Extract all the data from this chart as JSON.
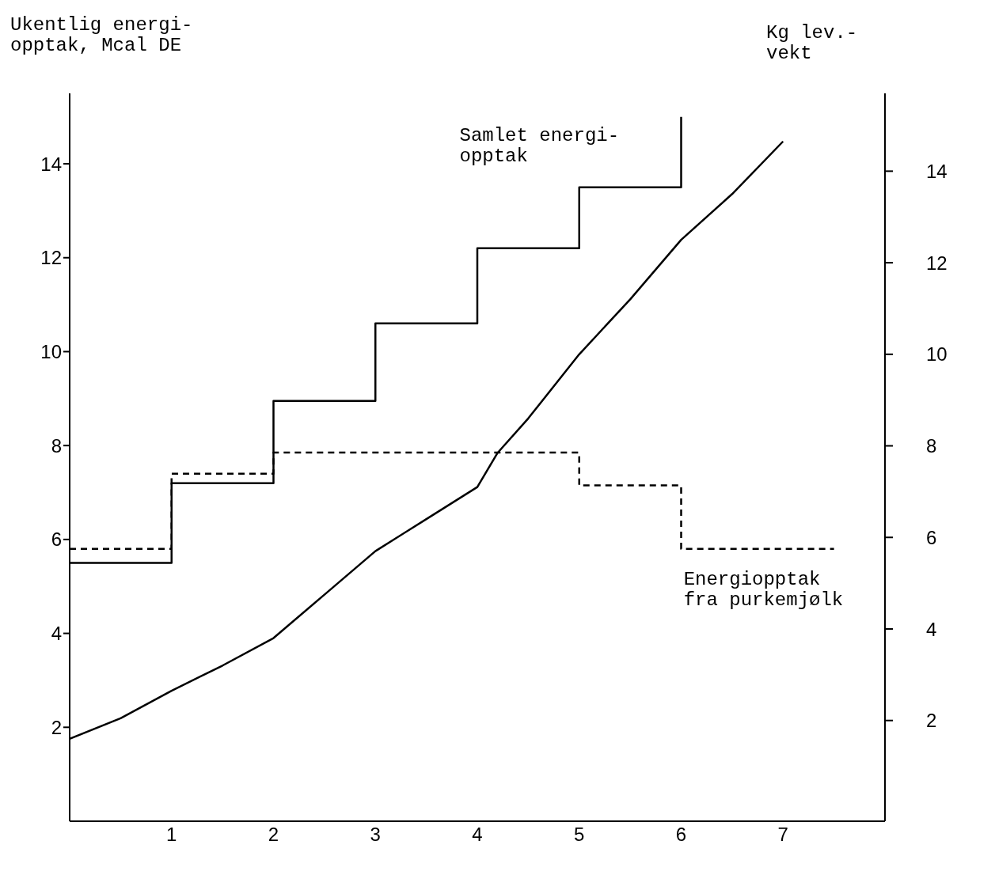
{
  "chart_data": {
    "type": "line",
    "ylabel": "Ukentlig energi-\nopptak, Mcal DE",
    "y2label": "Kg lev.-\nvekt",
    "xlim": [
      0,
      8
    ],
    "xticks": [
      1,
      2,
      3,
      4,
      5,
      6,
      7
    ],
    "ylim": [
      0,
      15.5
    ],
    "yticks": [
      2,
      4,
      6,
      8,
      10,
      12,
      14
    ],
    "y2lim": [
      -0.2,
      15.7
    ],
    "y2ticks": [
      2,
      4,
      6,
      8,
      10,
      12,
      14
    ],
    "marker": "none",
    "series": [
      {
        "name": "Samlet energi-\nopptak",
        "type": "step",
        "color": "#000000",
        "line_style": "solid",
        "x": [
          0,
          1,
          2,
          3,
          4,
          5,
          6,
          6
        ],
        "values": [
          5.5,
          7.2,
          8.95,
          10.6,
          12.2,
          13.5,
          13.5,
          15.0
        ]
      },
      {
        "name": "Energiopptak\nfra purkemjølk",
        "type": "step",
        "color": "#000000",
        "line_style": "dashed",
        "x": [
          0,
          1,
          2,
          5,
          6,
          7.5
        ],
        "values": [
          5.8,
          7.4,
          7.85,
          7.15,
          5.8,
          5.8
        ]
      },
      {
        "axis": "y2",
        "color": "#000000",
        "line_style": "solid",
        "x": [
          0,
          0.5,
          1,
          1.5,
          2,
          2.5,
          3,
          3.5,
          4,
          4.2,
          4.5,
          5,
          5.5,
          6,
          6.5,
          7
        ],
        "values": [
          1.6,
          2.05,
          2.65,
          3.2,
          3.8,
          4.75,
          5.7,
          6.4,
          7.1,
          7.85,
          8.6,
          10.0,
          11.2,
          12.5,
          13.5,
          14.65
        ]
      }
    ]
  }
}
